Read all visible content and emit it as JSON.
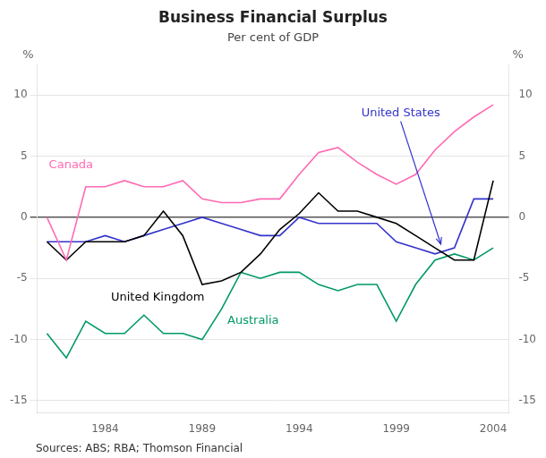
{
  "chart_data": {
    "type": "line",
    "title": "Business Financial Surplus",
    "subtitle": "Per cent of GDP",
    "source": "Sources: ABS; RBA; Thomson Financial",
    "ylabel": "%",
    "y2label": "%",
    "x": [
      1981,
      1982,
      1983,
      1984,
      1985,
      1986,
      1987,
      1988,
      1989,
      1990,
      1991,
      1992,
      1993,
      1994,
      1995,
      1996,
      1997,
      1998,
      1999,
      2000,
      2001,
      2002,
      2003,
      2004
    ],
    "series": [
      {
        "name": "Canada",
        "color": "#FF69B4",
        "values": [
          0.0,
          -3.5,
          2.5,
          2.5,
          3.0,
          2.5,
          2.5,
          3.0,
          1.5,
          1.2,
          1.2,
          1.5,
          1.5,
          3.5,
          5.3,
          5.7,
          4.5,
          3.5,
          2.7,
          3.5,
          5.5,
          7.0,
          8.2,
          9.2
        ]
      },
      {
        "name": "United Kingdom",
        "color": "#000000",
        "values": [
          -2.0,
          -3.5,
          -2.0,
          -2.0,
          -2.0,
          -1.5,
          0.5,
          -1.5,
          -5.5,
          -5.2,
          -4.5,
          -3.0,
          -1.0,
          0.3,
          2.0,
          0.5,
          0.5,
          0.0,
          -0.5,
          -1.5,
          -2.5,
          -3.5,
          -3.5,
          3.0
        ]
      },
      {
        "name": "Australia",
        "color": "#009966",
        "values": [
          -9.5,
          -11.5,
          -8.5,
          -9.5,
          -9.5,
          -8.0,
          -9.5,
          -9.5,
          -10.0,
          -7.5,
          -4.5,
          -5.0,
          -4.5,
          -4.5,
          -5.5,
          -6.0,
          -5.5,
          -5.5,
          -8.5,
          -5.5,
          -3.5,
          -3.0,
          -3.5,
          -2.5
        ]
      },
      {
        "name": "United States",
        "color": "#3333CC",
        "values": [
          -2.0,
          -2.0,
          -2.0,
          -1.5,
          -2.0,
          -1.5,
          -1.0,
          -0.5,
          0.0,
          -0.5,
          -1.0,
          -1.5,
          -1.5,
          0.0,
          -0.5,
          -0.5,
          -0.5,
          -0.5,
          -2.0,
          -2.5,
          -3.0,
          -2.5,
          1.5,
          1.5
        ]
      }
    ],
    "xlim": [
      1980.5,
      2004.8
    ],
    "xticks": [
      1984,
      1989,
      1994,
      1999,
      2004
    ],
    "ylim": [
      -16.0,
      12.5
    ],
    "yticks": [
      -15,
      -10,
      -5,
      0,
      5,
      10
    ],
    "y2lim": [
      -16.0,
      12.5
    ],
    "y2ticks": [
      -15,
      -10,
      -5,
      0,
      5,
      10
    ],
    "grid": true,
    "annotations": [
      {
        "text": "Canada",
        "x": 1981.1,
        "y": 4.0
      },
      {
        "text": "United Kingdom",
        "x": 1984.3,
        "y": -6.8
      },
      {
        "text": "Australia",
        "x": 1990.3,
        "y": -8.7
      },
      {
        "text": "United States",
        "x": 1997.2,
        "y": 8.5,
        "arrow_x": 2001.3,
        "arrow_y": -2.2
      }
    ]
  }
}
